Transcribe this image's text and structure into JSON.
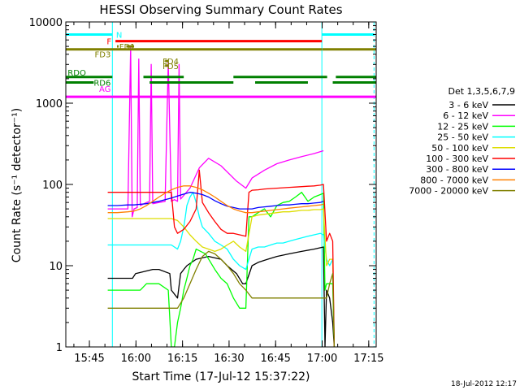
{
  "chart_data": {
    "type": "line",
    "title": "HESSI Observing Summary Count Rates",
    "xlabel": "Start Time (17-Jul-12 15:37:22)",
    "ylabel": "Count Rate (s⁻¹ detector⁻¹)",
    "x_unit": "minutes after 15:37:22",
    "xlim": [
      0,
      100
    ],
    "ylim": [
      1,
      10000
    ],
    "yscale": "log",
    "x_ticks": [
      {
        "label": "15:45",
        "x": 7.6
      },
      {
        "label": "16:00",
        "x": 22.6
      },
      {
        "label": "16:15",
        "x": 37.6
      },
      {
        "label": "16:30",
        "x": 52.6
      },
      {
        "label": "16:45",
        "x": 67.6
      },
      {
        "label": "17:00",
        "x": 82.6
      },
      {
        "label": "17:15",
        "x": 97.6
      }
    ],
    "y_ticks": [
      {
        "label": "1",
        "y": 1
      },
      {
        "label": "10",
        "y": 10
      },
      {
        "label": "100",
        "y": 100
      },
      {
        "label": "1000",
        "y": 1000
      },
      {
        "label": "10000",
        "y": 10000
      }
    ],
    "legend": {
      "title": "Det 1,3,5,6,7,9",
      "placement": "right"
    },
    "series": [
      {
        "name": "3 - 6 keV",
        "color": "#000000",
        "x": [
          13.5,
          16.5,
          16.6,
          20,
          21.5,
          22.5,
          28,
          30,
          33.5,
          34,
          36,
          37,
          38,
          39,
          42,
          46,
          50,
          52,
          55,
          57,
          58,
          60,
          62,
          65,
          68,
          72,
          76,
          80,
          83,
          83.5,
          84,
          85,
          86,
          86.5
        ],
        "y": [
          7,
          7,
          7,
          7,
          7,
          8,
          9,
          9,
          8,
          5,
          4,
          8,
          9,
          10,
          12,
          13,
          12,
          10,
          8,
          6,
          6,
          10,
          11,
          12,
          13,
          14,
          15,
          16,
          17,
          1,
          5,
          4,
          2,
          1
        ]
      },
      {
        "name": "6 - 12 keV",
        "color": "#ff00ff",
        "x": [
          13.5,
          16.6,
          20,
          20.9,
          21.4,
          22,
          23,
          23.5,
          24,
          26,
          27,
          27.5,
          28,
          30,
          32,
          33,
          34,
          35,
          36,
          36.5,
          37,
          40,
          43,
          46,
          50,
          55,
          58,
          60,
          64,
          68,
          72,
          76,
          80,
          83
        ],
        "y": [
          50,
          50,
          50,
          5000,
          40,
          50,
          52,
          3500,
          55,
          60,
          62,
          3000,
          58,
          60,
          62,
          3200,
          62,
          65,
          62,
          3000,
          66,
          90,
          160,
          210,
          170,
          110,
          90,
          120,
          150,
          180,
          200,
          220,
          240,
          260
        ]
      },
      {
        "name": "12 - 25 keV",
        "color": "#00ff00",
        "x": [
          13.5,
          16.6,
          20,
          20.9,
          21.4,
          22,
          24,
          26,
          30,
          33,
          34,
          35,
          36,
          37,
          38,
          39,
          40,
          41,
          42,
          45,
          48,
          50,
          52,
          54,
          56,
          58,
          59,
          60,
          62,
          64,
          66,
          68,
          70,
          72,
          74,
          76,
          78,
          80,
          82,
          83,
          83.5,
          84,
          85,
          86,
          86.5
        ],
        "y": [
          5,
          5,
          5,
          5,
          5,
          5,
          5,
          6,
          6,
          5,
          1,
          1,
          2,
          3,
          5,
          7,
          10,
          12,
          16,
          14,
          9,
          7,
          6,
          4,
          3,
          3,
          40,
          40,
          45,
          50,
          40,
          55,
          60,
          62,
          70,
          80,
          62,
          70,
          75,
          78,
          5,
          6,
          6,
          6,
          1
        ]
      },
      {
        "name": "25 - 50 keV",
        "color": "#00ffff",
        "x": [
          13.5,
          16.6,
          20,
          21,
          22,
          24,
          26,
          28,
          30,
          32,
          34,
          36,
          37,
          38,
          38.5,
          39,
          40,
          41,
          42,
          43,
          44,
          46,
          48,
          50,
          52,
          54,
          56,
          58,
          60,
          62,
          64,
          66,
          68,
          70,
          72,
          74,
          76,
          78,
          80,
          82,
          83,
          84,
          85,
          86,
          86.5
        ],
        "y": [
          18,
          18,
          18,
          18,
          18,
          18,
          18,
          18,
          18,
          18,
          18,
          16,
          20,
          30,
          40,
          55,
          70,
          80,
          60,
          40,
          30,
          25,
          20,
          18,
          16,
          12,
          10,
          9,
          16,
          17,
          17,
          18,
          19,
          19,
          20,
          21,
          22,
          23,
          24,
          25,
          24,
          12,
          10,
          12,
          1
        ]
      },
      {
        "name": "50 - 100 keV",
        "color": "#dddd00",
        "x": [
          13.5,
          16.6,
          20,
          22,
          24,
          26,
          28,
          30,
          32,
          34,
          36,
          38,
          40,
          42,
          44,
          46,
          48,
          50,
          52,
          54,
          56,
          58,
          60,
          62,
          64,
          66,
          68,
          70,
          72,
          74,
          76,
          78,
          80,
          82,
          83,
          84,
          85,
          86,
          86.5
        ],
        "y": [
          38,
          38,
          38,
          38,
          38,
          38,
          38,
          38,
          38,
          38,
          36,
          30,
          24,
          20,
          17,
          16,
          15,
          16,
          18,
          20,
          17,
          15,
          40,
          42,
          43,
          44,
          45,
          46,
          46,
          47,
          48,
          48,
          49,
          49,
          50,
          10,
          12,
          12,
          1
        ]
      },
      {
        "name": "100 - 300 keV",
        "color": "#ff0000",
        "x": [
          13.5,
          16.6,
          20,
          22,
          24,
          26,
          28,
          30,
          32,
          34,
          35,
          36,
          38,
          40,
          42,
          43,
          44,
          46,
          48,
          50,
          52,
          54,
          56,
          58,
          59,
          60,
          62,
          64,
          66,
          68,
          70,
          72,
          74,
          76,
          78,
          80,
          82,
          83,
          84,
          85,
          86,
          86.5
        ],
        "y": [
          80,
          80,
          80,
          80,
          80,
          80,
          80,
          80,
          80,
          80,
          30,
          25,
          28,
          35,
          50,
          150,
          60,
          45,
          35,
          28,
          25,
          25,
          24,
          23,
          80,
          85,
          86,
          88,
          89,
          90,
          91,
          92,
          93,
          94,
          95,
          96,
          98,
          100,
          20,
          25,
          20,
          1
        ]
      },
      {
        "name": "300 - 800 keV",
        "color": "#0000ff",
        "x": [
          13.5,
          16.6,
          20,
          22,
          24,
          26,
          28,
          30,
          32,
          34,
          36,
          38,
          40,
          42,
          44,
          46,
          48,
          50,
          52,
          54,
          56,
          58,
          60,
          62,
          64,
          66,
          68,
          70,
          72,
          74,
          76,
          78,
          80,
          82,
          83
        ],
        "y": [
          55,
          55,
          56,
          56,
          57,
          58,
          60,
          62,
          65,
          68,
          72,
          76,
          80,
          78,
          75,
          70,
          63,
          58,
          54,
          52,
          50,
          50,
          50,
          52,
          53,
          54,
          55,
          56,
          56,
          57,
          58,
          58,
          59,
          60,
          62
        ]
      },
      {
        "name": "800 - 7000 keV",
        "color": "#ff8000",
        "x": [
          13.5,
          16.6,
          20,
          22,
          24,
          26,
          28,
          30,
          32,
          34,
          36,
          38,
          40,
          42,
          44,
          46,
          48,
          50,
          52,
          54,
          56,
          58,
          60,
          62,
          64,
          66,
          68,
          70,
          72,
          74,
          76,
          78,
          80,
          82,
          83
        ],
        "y": [
          45,
          45,
          46,
          47,
          50,
          55,
          62,
          70,
          78,
          86,
          92,
          96,
          96,
          92,
          86,
          78,
          70,
          62,
          55,
          50,
          47,
          45,
          45,
          46,
          47,
          48,
          49,
          50,
          51,
          52,
          53,
          54,
          55,
          56,
          57
        ]
      },
      {
        "name": "7000 - 20000 keV",
        "color": "#808000",
        "x": [
          13.5,
          16.6,
          20,
          22,
          24,
          26,
          28,
          30,
          32,
          34,
          36,
          38,
          40,
          42,
          44,
          46,
          48,
          50,
          52,
          54,
          56,
          58,
          60,
          62,
          64,
          66,
          68,
          70,
          72,
          74,
          76,
          78,
          80,
          82,
          83,
          84,
          85,
          86,
          86.5
        ],
        "y": [
          3,
          3,
          3,
          3,
          3,
          3,
          3,
          3,
          3,
          3,
          3,
          4,
          6,
          9,
          13,
          15,
          14,
          12,
          10,
          8,
          6,
          5,
          4,
          4,
          4,
          4,
          4,
          4,
          4,
          4,
          4,
          4,
          4,
          4,
          4,
          4,
          6,
          8,
          1
        ]
      }
    ],
    "flag_bars": [
      {
        "label": "N",
        "color": "#00ffff",
        "y": 7000,
        "segments": [
          [
            0,
            15
          ],
          [
            82.5,
            99.3
          ]
        ]
      },
      {
        "label": "F",
        "color": "#ff0000",
        "y": 5800,
        "segments": [
          [
            16,
            82.5
          ]
        ]
      },
      {
        "label": "FD1",
        "color": "#808000",
        "y": 5000,
        "segments": [
          [
            16.5,
            17
          ],
          [
            19.5,
            22
          ]
        ]
      },
      {
        "label": "FD3",
        "color": "#808000",
        "y": 4600,
        "segments": [
          [
            0,
            82.5
          ],
          [
            82.6,
            100
          ]
        ]
      },
      {
        "label": "FD4",
        "color": "#808000",
        "y": 3300,
        "segments": [
          [
            32,
            33
          ]
        ]
      },
      {
        "label": "FD5",
        "color": "#808000",
        "y": 2900,
        "segments": [
          [
            32,
            33
          ]
        ]
      },
      {
        "label": "RDO",
        "color": "#008000",
        "y": 2100,
        "segments": [
          [
            0,
            15
          ],
          [
            25,
            38
          ],
          [
            54,
            84.2
          ],
          [
            87,
            100
          ]
        ]
      },
      {
        "label": "RD6",
        "color": "#008000",
        "y": 1800,
        "segments": [
          [
            0,
            9
          ],
          [
            27,
            54
          ],
          [
            61,
            78
          ],
          [
            86,
            100
          ]
        ]
      },
      {
        "label": "AG",
        "color": "#ff00ff",
        "y": 1200,
        "segments": [
          [
            0,
            100
          ]
        ]
      }
    ],
    "vlines": [
      {
        "color": "#00ffff",
        "x": 15
      },
      {
        "color": "#00ffff",
        "x": 82.5
      },
      {
        "color": "#00ffff",
        "x": 99.3,
        "dashed": true
      }
    ],
    "annotation": "18-Jul-2012 12:17"
  }
}
